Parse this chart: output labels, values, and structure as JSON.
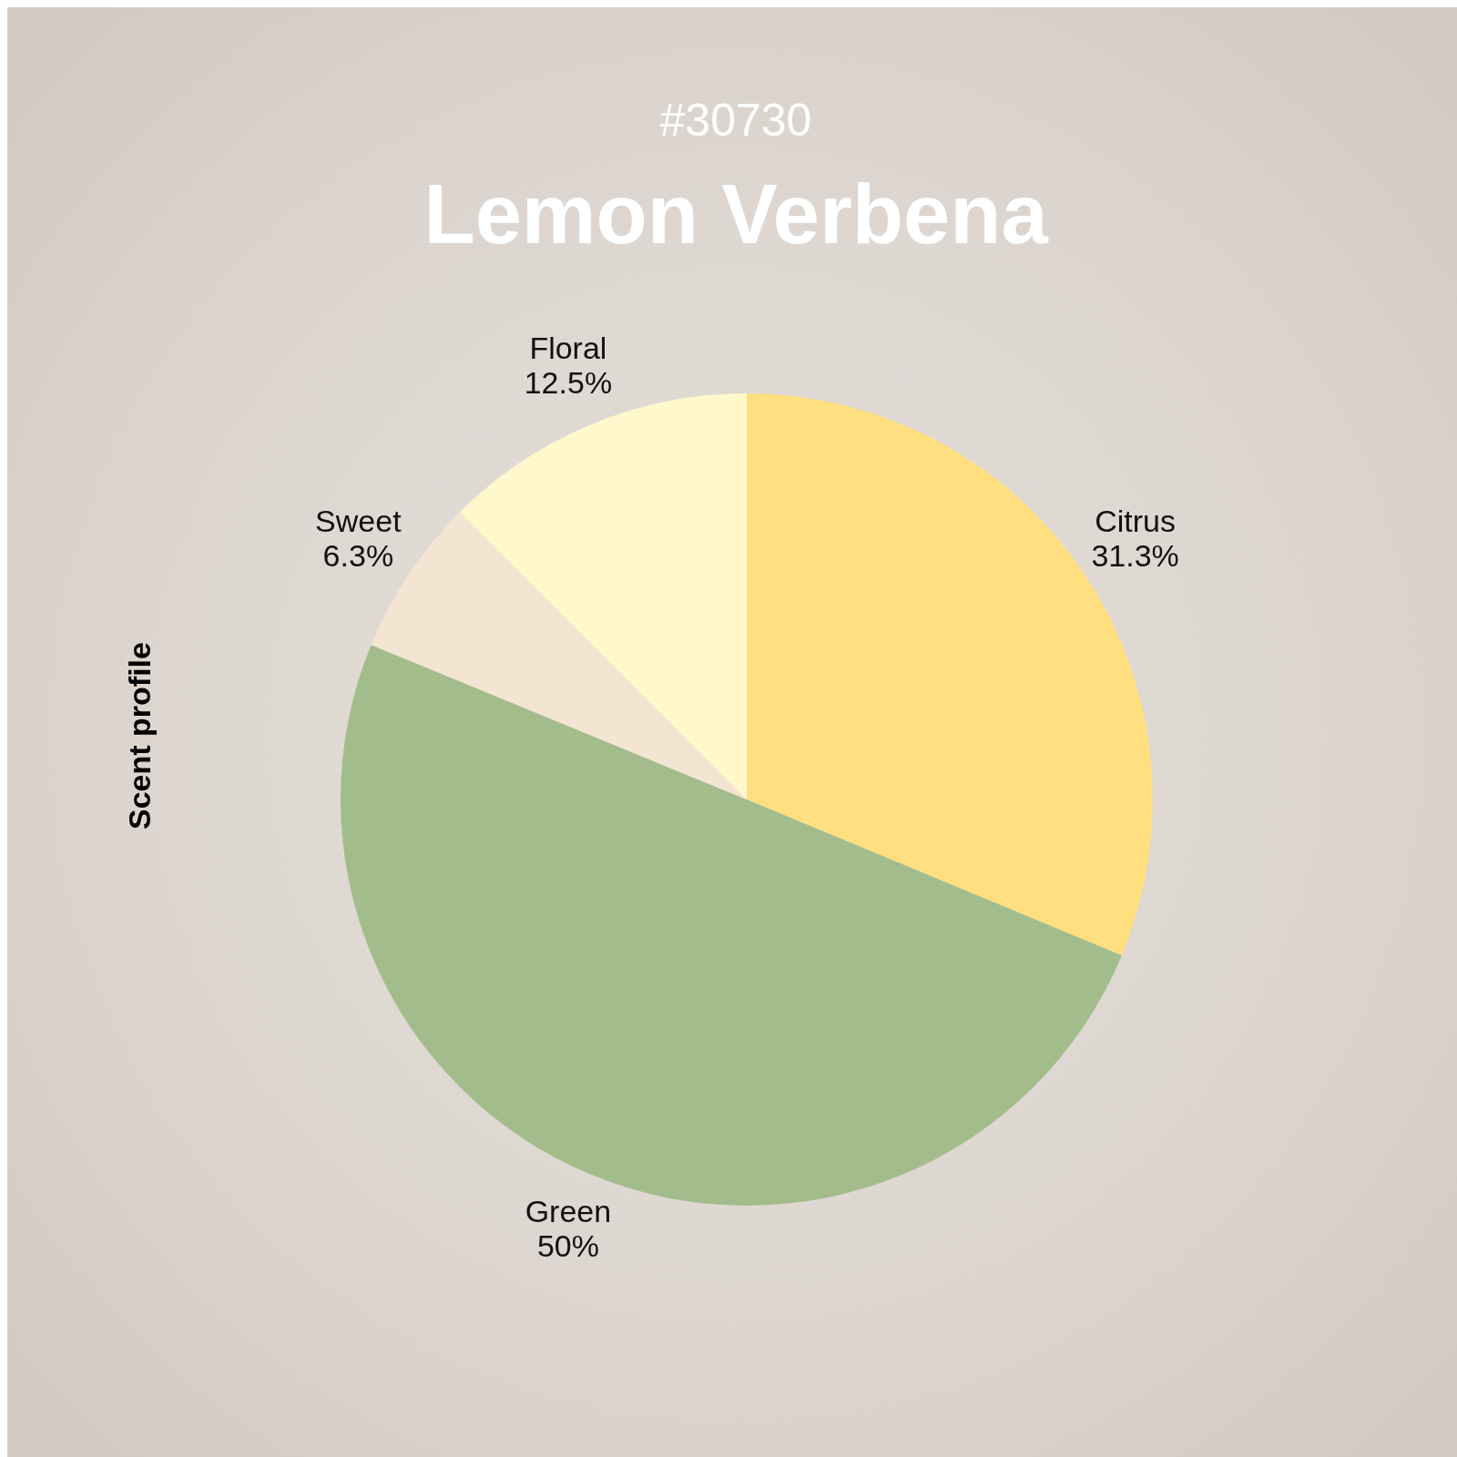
{
  "chart_data": {
    "type": "pie",
    "subtitle": "#30730",
    "title": "Lemon Verbena",
    "ylabel": "Scent profile",
    "categories": [
      "Citrus",
      "Green",
      "Sweet",
      "Floral"
    ],
    "values": [
      31.3,
      50,
      6.3,
      12.5
    ],
    "colors": [
      "#ffdf80",
      "#a3bc8b",
      "#f4e4d2",
      "#fff8cc"
    ],
    "value_labels": [
      "31.3%",
      "50%",
      "6.3%",
      "12.5%"
    ],
    "legend": false
  }
}
